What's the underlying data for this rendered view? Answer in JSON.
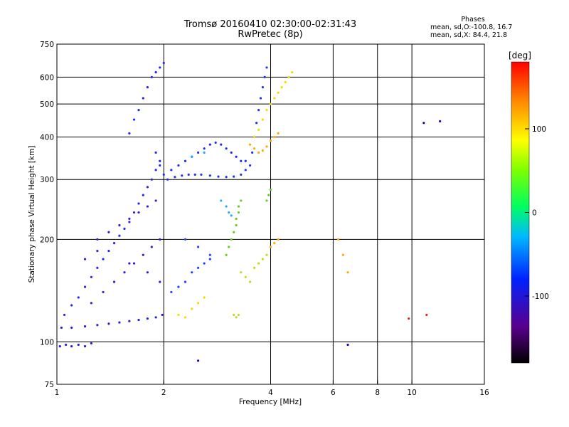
{
  "chart_data": {
    "type": "scatter",
    "title": "Tromsø 20160410 02:30:00-02:31:43",
    "subtitle": "RwPretec (8p)",
    "xlabel": "Frequency [MHz]",
    "ylabel": "Stationary phase Virtual Height [km]",
    "xscale": "log",
    "yscale": "log",
    "xlim": [
      1,
      16
    ],
    "ylim": [
      75,
      750
    ],
    "xticks": [
      1,
      2,
      4,
      6,
      8,
      10,
      16
    ],
    "yticks": [
      75,
      100,
      200,
      300,
      400,
      500,
      600,
      750
    ],
    "grid": true,
    "stats": {
      "heading": "Phases",
      "o_line": "mean, sd,O:-100.8, 16.7",
      "x_line": "mean, sd,X:  84.4, 21.8"
    },
    "colorbar": {
      "unit_label": "[deg]",
      "range": [
        -180,
        180
      ],
      "ticks": [
        100,
        0,
        -100
      ],
      "colors": [
        "#000000",
        "#5a008c",
        "#0022ff",
        "#00b8ff",
        "#00ff60",
        "#7cff00",
        "#ffff00",
        "#ff8800",
        "#ff0000"
      ]
    },
    "series": [
      {
        "color": "#2222dd",
        "points": [
          [
            1.02,
            97
          ],
          [
            1.06,
            98
          ],
          [
            1.1,
            97
          ],
          [
            1.15,
            98
          ],
          [
            1.2,
            97
          ],
          [
            1.25,
            99
          ],
          [
            1.03,
            110
          ],
          [
            1.1,
            110
          ],
          [
            1.2,
            111
          ],
          [
            1.3,
            112
          ],
          [
            1.4,
            113
          ],
          [
            1.5,
            114
          ],
          [
            1.6,
            115
          ],
          [
            1.7,
            116
          ],
          [
            1.8,
            117
          ],
          [
            1.9,
            118
          ],
          [
            1.98,
            120
          ]
        ]
      },
      {
        "color": "#2828e0",
        "points": [
          [
            1.05,
            120
          ],
          [
            1.1,
            128
          ],
          [
            1.15,
            135
          ],
          [
            1.2,
            145
          ],
          [
            1.25,
            155
          ],
          [
            1.3,
            165
          ],
          [
            1.35,
            175
          ],
          [
            1.4,
            185
          ],
          [
            1.45,
            195
          ],
          [
            1.5,
            205
          ],
          [
            1.55,
            215
          ],
          [
            1.6,
            225
          ],
          [
            1.65,
            240
          ],
          [
            1.7,
            255
          ],
          [
            1.75,
            270
          ],
          [
            1.8,
            285
          ],
          [
            1.85,
            300
          ],
          [
            1.9,
            320
          ],
          [
            1.95,
            340
          ]
        ]
      },
      {
        "color": "#3a1ed0",
        "points": [
          [
            1.25,
            130
          ],
          [
            1.35,
            140
          ],
          [
            1.45,
            150
          ],
          [
            1.55,
            160
          ],
          [
            1.65,
            170
          ],
          [
            1.75,
            180
          ],
          [
            1.85,
            190
          ],
          [
            1.95,
            200
          ],
          [
            1.3,
            200
          ],
          [
            1.4,
            210
          ],
          [
            1.5,
            220
          ],
          [
            1.6,
            230
          ],
          [
            1.7,
            240
          ],
          [
            1.8,
            250
          ],
          [
            1.9,
            260
          ],
          [
            1.2,
            175
          ],
          [
            1.3,
            185
          ],
          [
            1.6,
            170
          ],
          [
            1.8,
            160
          ],
          [
            1.95,
            150
          ]
        ]
      },
      {
        "color": "#1e2af0",
        "points": [
          [
            1.6,
            410
          ],
          [
            1.65,
            450
          ],
          [
            1.7,
            480
          ],
          [
            1.75,
            520
          ],
          [
            1.8,
            560
          ],
          [
            1.85,
            600
          ],
          [
            1.9,
            620
          ],
          [
            1.95,
            640
          ],
          [
            2.0,
            660
          ],
          [
            1.9,
            360
          ],
          [
            1.95,
            330
          ],
          [
            2.0,
            310
          ],
          [
            2.1,
            320
          ],
          [
            2.2,
            330
          ],
          [
            2.3,
            340
          ],
          [
            2.4,
            350
          ],
          [
            2.5,
            360
          ],
          [
            2.6,
            370
          ],
          [
            2.7,
            380
          ],
          [
            2.8,
            385
          ],
          [
            2.9,
            380
          ],
          [
            3.0,
            370
          ],
          [
            3.1,
            360
          ],
          [
            3.2,
            350
          ],
          [
            3.3,
            340
          ],
          [
            3.4,
            340
          ]
        ]
      },
      {
        "color": "#2233ee",
        "points": [
          [
            2.05,
            300
          ],
          [
            2.15,
            305
          ],
          [
            2.25,
            308
          ],
          [
            2.35,
            310
          ],
          [
            2.45,
            310
          ],
          [
            2.55,
            310
          ],
          [
            2.7,
            308
          ],
          [
            2.85,
            306
          ],
          [
            3.0,
            305
          ],
          [
            3.15,
            306
          ],
          [
            3.3,
            310
          ],
          [
            3.4,
            320
          ],
          [
            3.5,
            330
          ],
          [
            3.55,
            360
          ],
          [
            3.6,
            400
          ],
          [
            3.65,
            440
          ],
          [
            3.7,
            480
          ],
          [
            3.75,
            520
          ],
          [
            3.8,
            560
          ],
          [
            3.85,
            600
          ],
          [
            3.9,
            640
          ]
        ]
      },
      {
        "color": "#2244ff",
        "points": [
          [
            2.1,
            140
          ],
          [
            2.2,
            145
          ],
          [
            2.3,
            150
          ],
          [
            2.4,
            160
          ],
          [
            2.5,
            165
          ],
          [
            2.6,
            170
          ],
          [
            2.7,
            180
          ],
          [
            2.3,
            200
          ],
          [
            2.5,
            190
          ],
          [
            2.7,
            175
          ]
        ]
      },
      {
        "color": "#22aaff",
        "points": [
          [
            2.9,
            260
          ],
          [
            3.0,
            250
          ],
          [
            3.05,
            240
          ],
          [
            3.1,
            235
          ],
          [
            2.4,
            350
          ],
          [
            2.6,
            360
          ]
        ]
      },
      {
        "color": "#66cc22",
        "points": [
          [
            3.0,
            180
          ],
          [
            3.05,
            190
          ],
          [
            3.1,
            200
          ],
          [
            3.15,
            210
          ],
          [
            3.2,
            220
          ],
          [
            3.2,
            230
          ],
          [
            3.25,
            240
          ],
          [
            3.25,
            250
          ],
          [
            3.3,
            260
          ],
          [
            3.9,
            260
          ],
          [
            3.95,
            270
          ],
          [
            4.0,
            280
          ]
        ]
      },
      {
        "color": "#bbdd22",
        "points": [
          [
            3.3,
            160
          ],
          [
            3.4,
            155
          ],
          [
            3.5,
            150
          ],
          [
            3.6,
            165
          ],
          [
            3.7,
            170
          ],
          [
            3.8,
            175
          ],
          [
            3.9,
            180
          ],
          [
            3.15,
            120
          ],
          [
            3.2,
            118
          ],
          [
            3.25,
            120
          ]
        ]
      },
      {
        "color": "#eedd00",
        "points": [
          [
            2.2,
            120
          ],
          [
            2.3,
            118
          ],
          [
            2.4,
            125
          ],
          [
            2.5,
            130
          ],
          [
            2.6,
            135
          ],
          [
            3.6,
            400
          ],
          [
            3.7,
            420
          ],
          [
            3.8,
            450
          ],
          [
            3.9,
            480
          ],
          [
            4.0,
            500
          ],
          [
            4.1,
            520
          ],
          [
            4.2,
            540
          ],
          [
            4.3,
            560
          ],
          [
            4.4,
            580
          ],
          [
            4.5,
            600
          ],
          [
            4.6,
            620
          ]
        ]
      },
      {
        "color": "#ffaa00",
        "points": [
          [
            3.5,
            380
          ],
          [
            3.6,
            370
          ],
          [
            3.7,
            360
          ],
          [
            3.8,
            365
          ],
          [
            3.9,
            375
          ],
          [
            4.0,
            390
          ],
          [
            4.1,
            400
          ],
          [
            4.2,
            410
          ],
          [
            4.0,
            190
          ],
          [
            4.1,
            195
          ],
          [
            4.2,
            200
          ],
          [
            6.2,
            200
          ],
          [
            6.4,
            180
          ],
          [
            6.6,
            160
          ]
        ]
      },
      {
        "color": "#dd2222",
        "points": [
          [
            9.8,
            117
          ],
          [
            11.0,
            120
          ]
        ]
      },
      {
        "color": "#1111aa",
        "points": [
          [
            2.5,
            88
          ],
          [
            6.6,
            98
          ],
          [
            10.8,
            440
          ],
          [
            12.0,
            445
          ]
        ]
      }
    ]
  }
}
